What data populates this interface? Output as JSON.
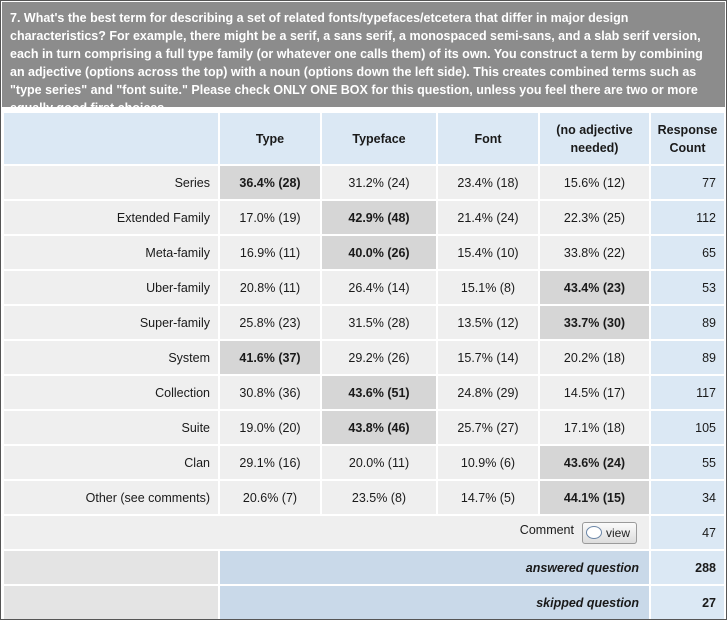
{
  "question": "7. What's the best term for describing a set of related fonts/typefaces/etcetera that differ in major design characteristics? For example, there might be a serif, a sans serif, a monospaced semi-sans, and a slab serif version, each in turn comprising a full type family (or whatever one calls them) of its own. You construct a term by combining an adjective (options across the top) with a noun (options down the left side). This creates combined terms such as \"type series\" and \"font suite.\" Please check ONLY ONE BOX for this question, unless you feel there are two or more equally good first choices.",
  "columns": [
    "Type",
    "Typeface",
    "Font",
    "(no adjective needed)"
  ],
  "response_count_header": "Response Count",
  "rows": [
    {
      "label": "Series",
      "cells": [
        "36.4% (28)",
        "31.2% (24)",
        "23.4% (18)",
        "15.6% (12)"
      ],
      "count": "77"
    },
    {
      "label": "Extended Family",
      "cells": [
        "17.0% (19)",
        "42.9% (48)",
        "21.4% (24)",
        "22.3% (25)"
      ],
      "count": "112"
    },
    {
      "label": "Meta-family",
      "cells": [
        "16.9% (11)",
        "40.0% (26)",
        "15.4% (10)",
        "33.8% (22)"
      ],
      "count": "65"
    },
    {
      "label": "Uber-family",
      "cells": [
        "20.8% (11)",
        "26.4% (14)",
        "15.1% (8)",
        "43.4% (23)"
      ],
      "count": "53"
    },
    {
      "label": "Super-family",
      "cells": [
        "25.8% (23)",
        "31.5% (28)",
        "13.5% (12)",
        "33.7% (30)"
      ],
      "count": "89"
    },
    {
      "label": "System",
      "cells": [
        "41.6% (37)",
        "29.2% (26)",
        "15.7% (14)",
        "20.2% (18)"
      ],
      "count": "89"
    },
    {
      "label": "Collection",
      "cells": [
        "30.8% (36)",
        "43.6% (51)",
        "24.8% (29)",
        "14.5% (17)"
      ],
      "count": "117"
    },
    {
      "label": "Suite",
      "cells": [
        "19.0% (20)",
        "43.8% (46)",
        "25.7% (27)",
        "17.1% (18)"
      ],
      "count": "105"
    },
    {
      "label": "Clan",
      "cells": [
        "29.1% (16)",
        "20.0% (11)",
        "10.9% (6)",
        "43.6% (24)"
      ],
      "count": "55"
    },
    {
      "label": "Other (see comments)",
      "cells": [
        "20.6% (7)",
        "23.5% (8)",
        "14.7% (5)",
        "44.1% (15)"
      ],
      "count": "34"
    }
  ],
  "comment": {
    "label": "Comment",
    "button_label": "view",
    "icon": "speech-bubble-icon",
    "count": "47"
  },
  "answered": {
    "label": "answered question",
    "count": "288"
  },
  "skipped": {
    "label": "skipped question",
    "count": "27"
  },
  "colors": {
    "header_bg": "#8c8c8c",
    "column_header_bg": "#dbe8f4",
    "row_bg": "#efefef",
    "highlight_bg": "#d6d6d6"
  }
}
